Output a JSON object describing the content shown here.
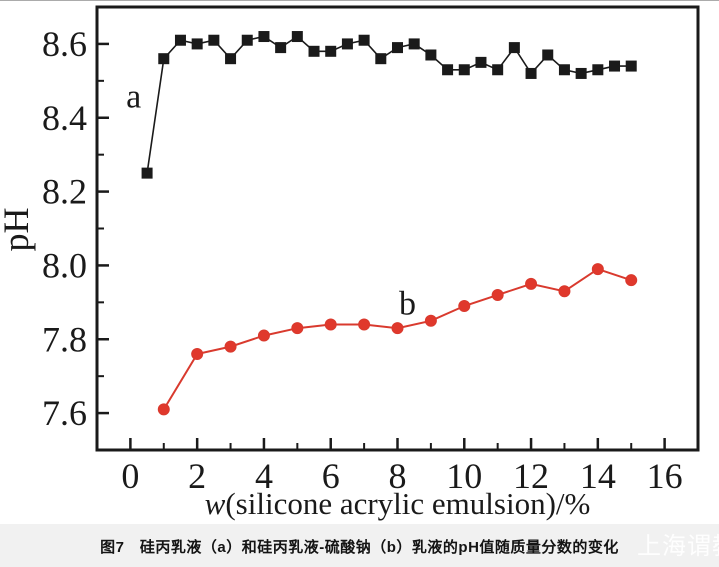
{
  "figure": {
    "caption": "图7　硅丙乳液（a）和硅丙乳液-硫酸钠（b）乳液的pH值随质量分数的变化",
    "watermark": "上海谓教"
  },
  "colors": {
    "axis": "#1a1a1a",
    "series_a": "#1a1a1a",
    "series_b": "#e0382c",
    "series_b_line": "#d93a2e",
    "caption_bg": "#f1f1f1",
    "caption_text": "#141414"
  },
  "chart_data": {
    "type": "line",
    "title": "",
    "xlabel": "w(silicone acrylic emulsion)/%",
    "xlabel_italic_first_char": true,
    "ylabel": "pH",
    "xlim": [
      -1,
      17
    ],
    "ylim": [
      7.5,
      8.7
    ],
    "x_major_ticks": [
      0,
      2,
      4,
      6,
      8,
      10,
      12,
      14,
      16
    ],
    "x_minor_ticks": [
      1,
      3,
      5,
      7,
      9,
      11,
      13,
      15
    ],
    "y_major_ticks": [
      8.6,
      8.4,
      8.2,
      8.0,
      7.8,
      7.6
    ],
    "y_minor_ticks": [
      8.5,
      8.3,
      8.1,
      7.9,
      7.7
    ],
    "grid": false,
    "legend_position": "none-inline-labels",
    "series": [
      {
        "name": "a",
        "inline_label": "a",
        "marker": "square",
        "color": "#1a1a1a",
        "label_pos": {
          "x": 0.1,
          "y": 8.46
        },
        "points": [
          [
            0.5,
            8.25
          ],
          [
            1,
            8.56
          ],
          [
            1.5,
            8.61
          ],
          [
            2,
            8.6
          ],
          [
            2.5,
            8.61
          ],
          [
            3,
            8.56
          ],
          [
            3.5,
            8.61
          ],
          [
            4,
            8.62
          ],
          [
            4.5,
            8.59
          ],
          [
            5,
            8.62
          ],
          [
            5.5,
            8.58
          ],
          [
            6,
            8.58
          ],
          [
            6.5,
            8.6
          ],
          [
            7,
            8.61
          ],
          [
            7.5,
            8.56
          ],
          [
            8,
            8.59
          ],
          [
            8.5,
            8.6
          ],
          [
            9,
            8.57
          ],
          [
            9.5,
            8.53
          ],
          [
            10,
            8.53
          ],
          [
            10.5,
            8.55
          ],
          [
            11,
            8.53
          ],
          [
            11.5,
            8.59
          ],
          [
            12,
            8.52
          ],
          [
            12.5,
            8.57
          ],
          [
            13,
            8.53
          ],
          [
            13.5,
            8.52
          ],
          [
            14,
            8.53
          ],
          [
            14.5,
            8.54
          ],
          [
            15,
            8.54
          ]
        ]
      },
      {
        "name": "b",
        "inline_label": "b",
        "marker": "circle",
        "color": "#e0382c",
        "label_pos": {
          "x": 8.3,
          "y": 7.9
        },
        "points": [
          [
            1,
            7.61
          ],
          [
            2,
            7.76
          ],
          [
            3,
            7.78
          ],
          [
            4,
            7.81
          ],
          [
            5,
            7.83
          ],
          [
            6,
            7.84
          ],
          [
            7,
            7.84
          ],
          [
            8,
            7.83
          ],
          [
            9,
            7.85
          ],
          [
            10,
            7.89
          ],
          [
            11,
            7.92
          ],
          [
            12,
            7.95
          ],
          [
            13,
            7.93
          ],
          [
            14,
            7.99
          ],
          [
            15,
            7.96
          ]
        ]
      }
    ]
  }
}
